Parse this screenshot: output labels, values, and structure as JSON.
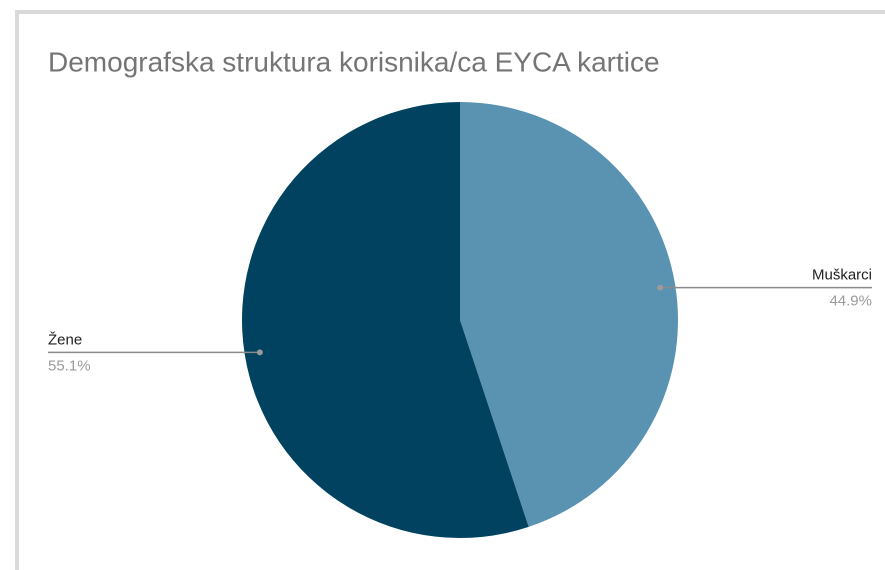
{
  "chart_data": {
    "type": "pie",
    "title": "Demografska struktura korisnika/ca EYCA kartice",
    "categories": [
      "Muškarci",
      "Žene"
    ],
    "values": [
      44.9,
      55.1
    ],
    "value_labels": [
      "44.9%",
      "55.1%"
    ],
    "colors": [
      "#5a93b1",
      "#00425f"
    ]
  }
}
